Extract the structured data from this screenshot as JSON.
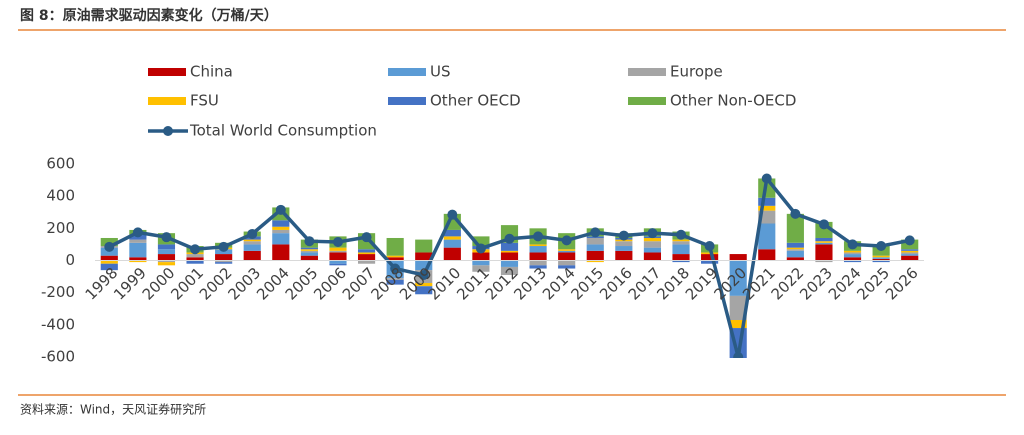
{
  "chart_data": {
    "type": "stacked-bar",
    "title": "图 8：原油需求驱动因素变化（万桶/天）",
    "source": "资料来源：Wind，天风证券研究所",
    "categories": [
      "1998",
      "1999",
      "2000",
      "2001",
      "2002",
      "2003",
      "2004",
      "2005",
      "2006",
      "2007",
      "2008",
      "2009",
      "2010",
      "2011",
      "2012",
      "2013",
      "2014",
      "2015",
      "2016",
      "2017",
      "2018",
      "2019",
      "2020",
      "2021",
      "2022",
      "2023",
      "2024",
      "2025",
      "2026"
    ],
    "ylim": [
      -600,
      600
    ],
    "yticks": [
      -600,
      -400,
      -200,
      0,
      200,
      400,
      600
    ],
    "series": [
      {
        "name": "China",
        "color": "#c00000",
        "values": [
          30,
          20,
          40,
          20,
          40,
          60,
          100,
          30,
          50,
          40,
          20,
          50,
          80,
          50,
          50,
          50,
          50,
          60,
          60,
          50,
          40,
          40,
          40,
          70,
          20,
          100,
          20,
          10,
          30
        ]
      },
      {
        "name": "US",
        "color": "#5b9bd5",
        "values": [
          50,
          90,
          30,
          0,
          30,
          40,
          70,
          20,
          -20,
          0,
          -110,
          -60,
          50,
          -30,
          -40,
          40,
          10,
          40,
          30,
          30,
          60,
          0,
          -220,
          160,
          40,
          10,
          20,
          10,
          10
        ]
      },
      {
        "name": "Europe",
        "color": "#a5a5a5",
        "values": [
          10,
          20,
          -10,
          20,
          -10,
          20,
          20,
          10,
          10,
          -20,
          -10,
          -80,
          0,
          -40,
          -50,
          -30,
          -30,
          40,
          30,
          40,
          20,
          0,
          -150,
          80,
          10,
          -10,
          10,
          0,
          10
        ]
      },
      {
        "name": "FSU",
        "color": "#ffc000",
        "values": [
          -20,
          -10,
          -20,
          10,
          10,
          10,
          20,
          10,
          20,
          10,
          10,
          -20,
          20,
          20,
          10,
          10,
          10,
          -10,
          10,
          20,
          10,
          10,
          -50,
          30,
          10,
          10,
          10,
          10,
          10
        ]
      },
      {
        "name": "Other OECD",
        "color": "#4472c4",
        "values": [
          -40,
          30,
          30,
          -20,
          -10,
          20,
          40,
          10,
          -10,
          20,
          -30,
          -50,
          40,
          20,
          50,
          -20,
          -20,
          10,
          10,
          10,
          -10,
          -20,
          -200,
          50,
          30,
          20,
          -10,
          -10,
          10
        ]
      },
      {
        "name": "Other Non-OECD",
        "color": "#70ad47",
        "values": [
          50,
          30,
          70,
          40,
          30,
          30,
          80,
          50,
          70,
          100,
          110,
          80,
          100,
          60,
          110,
          100,
          100,
          50,
          30,
          50,
          50,
          50,
          -40,
          120,
          180,
          100,
          60,
          70,
          60
        ]
      },
      {
        "name": "Total World Consumption",
        "type": "line",
        "color": "#2a5b85",
        "values": [
          85,
          175,
          145,
          70,
          85,
          165,
          315,
          120,
          115,
          145,
          -50,
          -90,
          285,
          75,
          135,
          150,
          125,
          175,
          155,
          170,
          160,
          90,
          -600,
          510,
          290,
          225,
          100,
          90,
          125
        ]
      }
    ]
  }
}
